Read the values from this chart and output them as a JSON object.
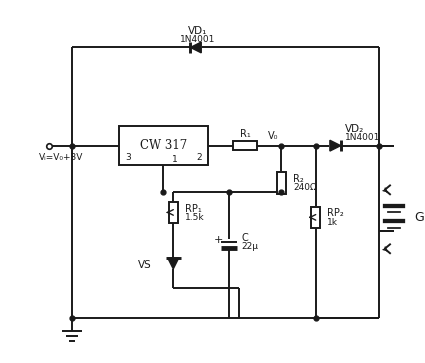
{
  "bg_color": "#ffffff",
  "lc": "#1a1a1a",
  "lw": 1.4,
  "figsize": [
    4.25,
    3.63
  ],
  "dpi": 100,
  "labels": {
    "VD1": "VD₁",
    "VD1_part": "1N4001",
    "VD2": "VD₂",
    "VD2_part": "1N4001",
    "CW317": "CW 317",
    "R1": "R₁",
    "R2": "R₂",
    "R2_val": "240Ω",
    "RP1": "RP₁",
    "RP1_val": "1.5k",
    "RP2": "RP₂",
    "RP2_val": "1k",
    "C": "C",
    "C_val": "22μ",
    "VS": "VS",
    "G": "G",
    "Vi": "Vᵢ=V₀+3V",
    "V0": "V₀",
    "pin1": "1",
    "pin2": "2",
    "pin3": "3",
    "plus": "+"
  }
}
